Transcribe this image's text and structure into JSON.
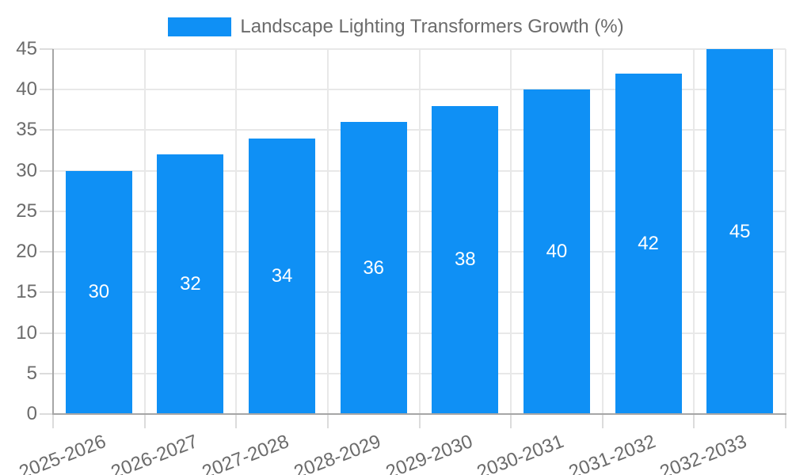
{
  "legend": {
    "label": "Landscape Lighting Transformers Growth (%)"
  },
  "chart_data": {
    "type": "bar",
    "title": "",
    "xlabel": "",
    "ylabel": "",
    "categories": [
      "2025-2026",
      "2026-2027",
      "2027-2028",
      "2028-2029",
      "2029-2030",
      "2030-2031",
      "2031-2032",
      "2032-2033"
    ],
    "values": [
      30,
      32,
      34,
      36,
      38,
      40,
      42,
      45
    ],
    "series_name": "Landscape Lighting Transformers Growth (%)",
    "ylim": [
      0,
      45
    ],
    "y_tick_step": 5,
    "y_ticks": [
      0,
      5,
      10,
      15,
      20,
      25,
      30,
      35,
      40,
      45
    ],
    "grid": true,
    "legend_position": "top",
    "value_labels": "inside-center",
    "colors": {
      "bar": "#0f90f5",
      "value_label": "#ffffff",
      "axis_text": "#6b6b6b",
      "grid_line": "#e8e8e8",
      "tick_line": "#dcdcdc",
      "axis_line": "#a6a6a6",
      "background": "#ffffff"
    }
  }
}
